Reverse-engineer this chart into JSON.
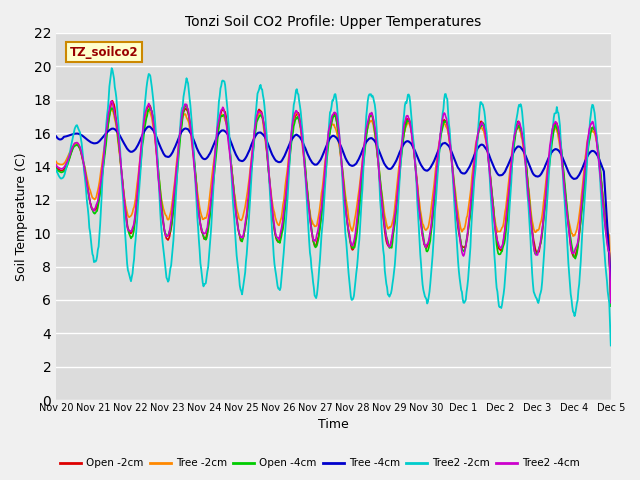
{
  "title": "Tonzi Soil CO2 Profile: Upper Temperatures",
  "xlabel": "Time",
  "ylabel": "Soil Temperature (C)",
  "ylim": [
    0,
    22
  ],
  "yticks": [
    0,
    2,
    4,
    6,
    8,
    10,
    12,
    14,
    16,
    18,
    20,
    22
  ],
  "plot_bg_color": "#dcdcdc",
  "fig_bg_color": "#f0f0f0",
  "series": [
    {
      "label": "Open -2cm",
      "color": "#dd0000"
    },
    {
      "label": "Tree -2cm",
      "color": "#ff8800"
    },
    {
      "label": "Open -4cm",
      "color": "#00cc00"
    },
    {
      "label": "Tree -4cm",
      "color": "#0000cc"
    },
    {
      "label": "Tree2 -2cm",
      "color": "#00cccc"
    },
    {
      "label": "Tree2 -4cm",
      "color": "#cc00cc"
    }
  ],
  "watermark": "TZ_soilco2",
  "n_days": 15,
  "points_per_day": 48,
  "legend_labels": [
    "Open -2cm",
    "Tree -2cm",
    "Open -4cm",
    "Tree -4cm",
    "Tree2 -2cm",
    "Tree2 -4cm"
  ]
}
